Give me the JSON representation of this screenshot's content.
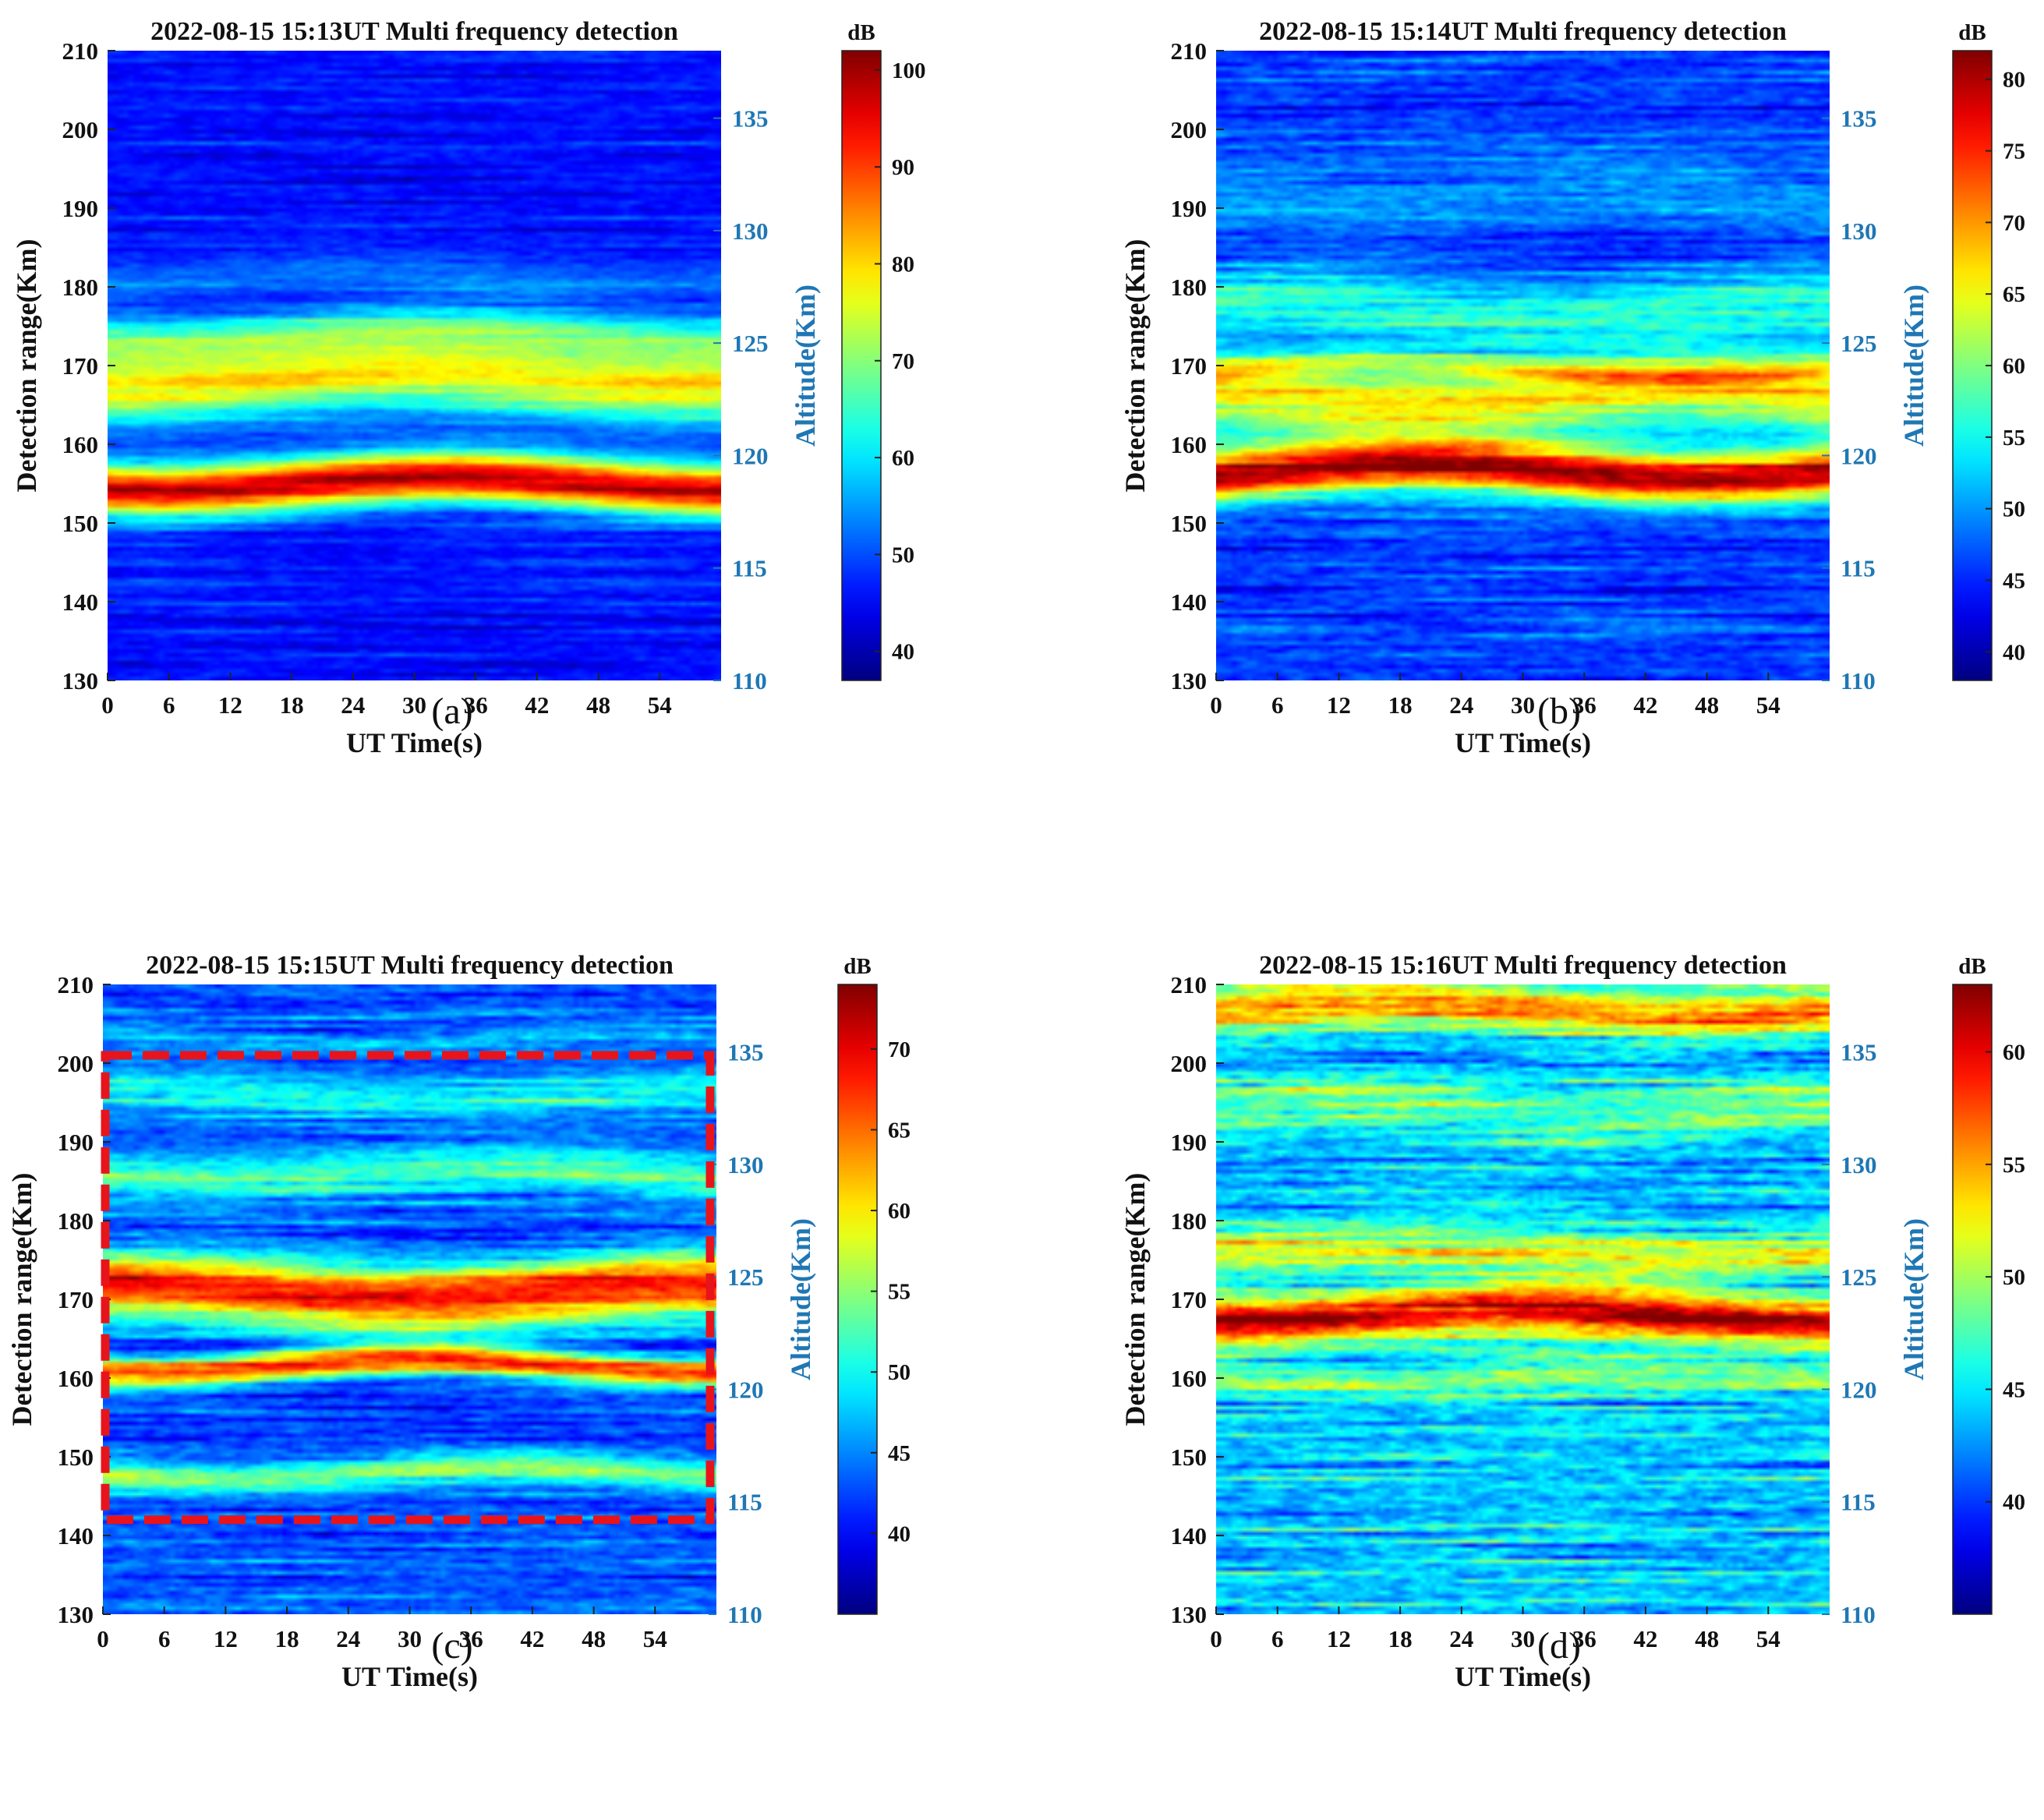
{
  "chart_data": [
    {
      "type": "heatmap",
      "panel": "a",
      "panel_label": "(a)",
      "title": "2022-08-15 15:13UT  Multi frequency detection",
      "xlabel": "UT Time(s)",
      "ylabel": "Detection range(Km)",
      "y2label": "Altitude(Km)",
      "colorbar_label": "dB",
      "xlim": [
        0,
        60
      ],
      "xticks": [
        0,
        6,
        12,
        18,
        24,
        30,
        36,
        42,
        48,
        54
      ],
      "ylim": [
        130,
        210
      ],
      "yticks": [
        130,
        140,
        150,
        160,
        170,
        180,
        190,
        200,
        210
      ],
      "y2lim": [
        110,
        138
      ],
      "y2ticks": [
        110,
        115,
        120,
        125,
        130,
        135
      ],
      "clim": [
        37,
        102
      ],
      "cticks": [
        40,
        50,
        60,
        70,
        80,
        90,
        100
      ],
      "base_db": 46,
      "bands": [
        {
          "center": 155,
          "width": 3.2,
          "amp": 52
        },
        {
          "center": 168,
          "width": 4.5,
          "amp": 32
        },
        {
          "center": 174,
          "width": 3,
          "amp": 18
        },
        {
          "center": 181,
          "width": 3,
          "amp": 6
        }
      ]
    },
    {
      "type": "heatmap",
      "panel": "b",
      "panel_label": "(b)",
      "title": "2022-08-15 15:14UT  Multi frequency detection",
      "xlabel": "UT Time(s)",
      "ylabel": "Detection range(Km)",
      "y2label": "Altitude(Km)",
      "colorbar_label": "dB",
      "xlim": [
        0,
        60
      ],
      "xticks": [
        0,
        6,
        12,
        18,
        24,
        30,
        36,
        42,
        48,
        54
      ],
      "ylim": [
        130,
        210
      ],
      "yticks": [
        130,
        140,
        150,
        160,
        170,
        180,
        190,
        200,
        210
      ],
      "y2lim": [
        110,
        138
      ],
      "y2ticks": [
        110,
        115,
        120,
        125,
        130,
        135
      ],
      "clim": [
        38,
        82
      ],
      "cticks": [
        40,
        45,
        50,
        55,
        60,
        65,
        70,
        75,
        80
      ],
      "base_db": 46,
      "bands": [
        {
          "center": 156.5,
          "width": 3.2,
          "amp": 34
        },
        {
          "center": 166,
          "width": 5,
          "amp": 20
        },
        {
          "center": 169.5,
          "width": 1.3,
          "amp": 10
        },
        {
          "center": 177,
          "width": 4,
          "amp": 11
        },
        {
          "center": 192,
          "width": 5,
          "amp": 4
        }
      ]
    },
    {
      "type": "heatmap",
      "panel": "c",
      "panel_label": "(c)",
      "title": "2022-08-15 15:15UT  Multi frequency detection",
      "xlabel": "UT Time(s)",
      "ylabel": "Detection range(Km)",
      "y2label": "Altitude(Km)",
      "colorbar_label": "dB",
      "xlim": [
        0,
        60
      ],
      "xticks": [
        0,
        6,
        12,
        18,
        24,
        30,
        36,
        42,
        48,
        54
      ],
      "ylim": [
        130,
        210
      ],
      "yticks": [
        130,
        140,
        150,
        160,
        170,
        180,
        190,
        200,
        210
      ],
      "y2lim": [
        110,
        138
      ],
      "y2ticks": [
        110,
        115,
        120,
        125,
        130,
        135
      ],
      "clim": [
        35,
        74
      ],
      "cticks": [
        40,
        45,
        50,
        55,
        60,
        65,
        70
      ],
      "base_db": 43,
      "bands": [
        {
          "center": 171,
          "width": 4,
          "amp": 26
        },
        {
          "center": 161.5,
          "width": 1.8,
          "amp": 24
        },
        {
          "center": 148,
          "width": 1.8,
          "amp": 12
        },
        {
          "center": 186,
          "width": 3,
          "amp": 9
        },
        {
          "center": 196,
          "width": 2.5,
          "amp": 7
        },
        {
          "center": 203,
          "width": 1.5,
          "amp": 4
        }
      ],
      "annotation": {
        "type": "dashed-rectangle",
        "color": "#e8141c",
        "x_range": [
          0,
          60
        ],
        "y_range": [
          142,
          201
        ]
      }
    },
    {
      "type": "heatmap",
      "panel": "d",
      "panel_label": "(d)",
      "title": "2022-08-15 15:16UT  Multi frequency detection",
      "xlabel": "UT Time(s)",
      "ylabel": "Detection range(Km)",
      "y2label": "Altitude(Km)",
      "colorbar_label": "dB",
      "xlim": [
        0,
        60
      ],
      "xticks": [
        0,
        6,
        12,
        18,
        24,
        30,
        36,
        42,
        48,
        54
      ],
      "ylim": [
        130,
        210
      ],
      "yticks": [
        130,
        140,
        150,
        160,
        170,
        180,
        190,
        200,
        210
      ],
      "y2lim": [
        110,
        138
      ],
      "y2ticks": [
        110,
        115,
        120,
        125,
        130,
        135
      ],
      "clim": [
        35,
        63
      ],
      "cticks": [
        40,
        45,
        50,
        55,
        60
      ],
      "base_db": 44,
      "bands": [
        {
          "center": 168,
          "width": 3,
          "amp": 17
        },
        {
          "center": 176,
          "width": 3,
          "amp": 8
        },
        {
          "center": 207,
          "width": 2.5,
          "amp": 12
        },
        {
          "center": 195,
          "width": 3,
          "amp": 4
        },
        {
          "center": 160,
          "width": 2,
          "amp": 5
        }
      ]
    }
  ]
}
